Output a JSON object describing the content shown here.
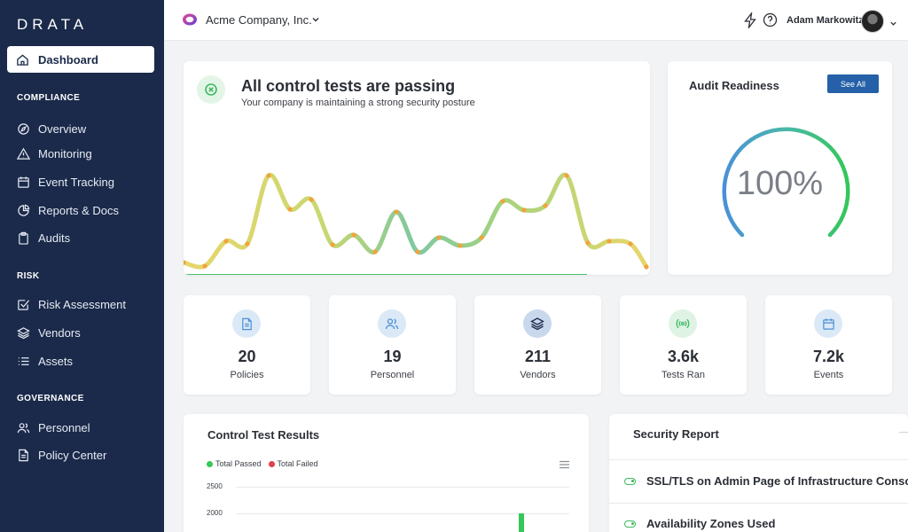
{
  "app": {
    "logo": "DRATA"
  },
  "sidebar": {
    "active": {
      "label": "Dashboard",
      "icon": "home-icon"
    },
    "sections": [
      {
        "title": "COMPLIANCE",
        "items": [
          {
            "label": "Overview",
            "icon": "compass-icon"
          },
          {
            "label": "Monitoring",
            "icon": "warning-icon"
          },
          {
            "label": "Event Tracking",
            "icon": "calendar-icon"
          },
          {
            "label": "Reports & Docs",
            "icon": "pie-chart-icon"
          },
          {
            "label": "Audits",
            "icon": "clipboard-icon"
          }
        ]
      },
      {
        "title": "RISK",
        "items": [
          {
            "label": "Risk Assessment",
            "icon": "checkbox-icon"
          },
          {
            "label": "Vendors",
            "icon": "layers-icon"
          },
          {
            "label": "Assets",
            "icon": "list-icon"
          }
        ]
      },
      {
        "title": "GOVERNANCE",
        "items": [
          {
            "label": "Personnel",
            "icon": "users-icon"
          },
          {
            "label": "Policy Center",
            "icon": "document-icon"
          }
        ]
      }
    ]
  },
  "header": {
    "company": "Acme Company, Inc.",
    "user": "Adam Markowitz"
  },
  "hero": {
    "title": "All control tests are passing",
    "subtitle": "Your company is maintaining a strong security posture"
  },
  "audit": {
    "title": "Audit Readiness",
    "button": "See All",
    "value": "100%",
    "progress": 1.0
  },
  "stats": [
    {
      "value": "20",
      "label": "Policies",
      "icon": "document-icon",
      "color": "#dbe9f7"
    },
    {
      "value": "19",
      "label": "Personnel",
      "icon": "users-icon",
      "color": "#dbe9f7"
    },
    {
      "value": "211",
      "label": "Vendors",
      "icon": "layers-icon",
      "color": "#c9d8ec"
    },
    {
      "value": "3.6k",
      "label": "Tests Ran",
      "icon": "signal-icon",
      "color": "#dff3e4"
    },
    {
      "value": "7.2k",
      "label": "Events",
      "icon": "calendar-icon",
      "color": "#dbe9f7"
    }
  ],
  "results": {
    "title": "Control Test Results",
    "legend": [
      {
        "label": "Total Passed",
        "color": "#34c759"
      },
      {
        "label": "Total Failed",
        "color": "#e0414a"
      }
    ],
    "yticks": [
      "2500",
      "2000"
    ]
  },
  "security": {
    "title": "Security Report",
    "rows": [
      "SSL/TLS on Admin Page of Infrastructure Console",
      "Availability Zones Used"
    ]
  },
  "colors": {
    "sidebar": "#1b2a4a",
    "accent": "#2560a8",
    "success": "#34c759"
  }
}
